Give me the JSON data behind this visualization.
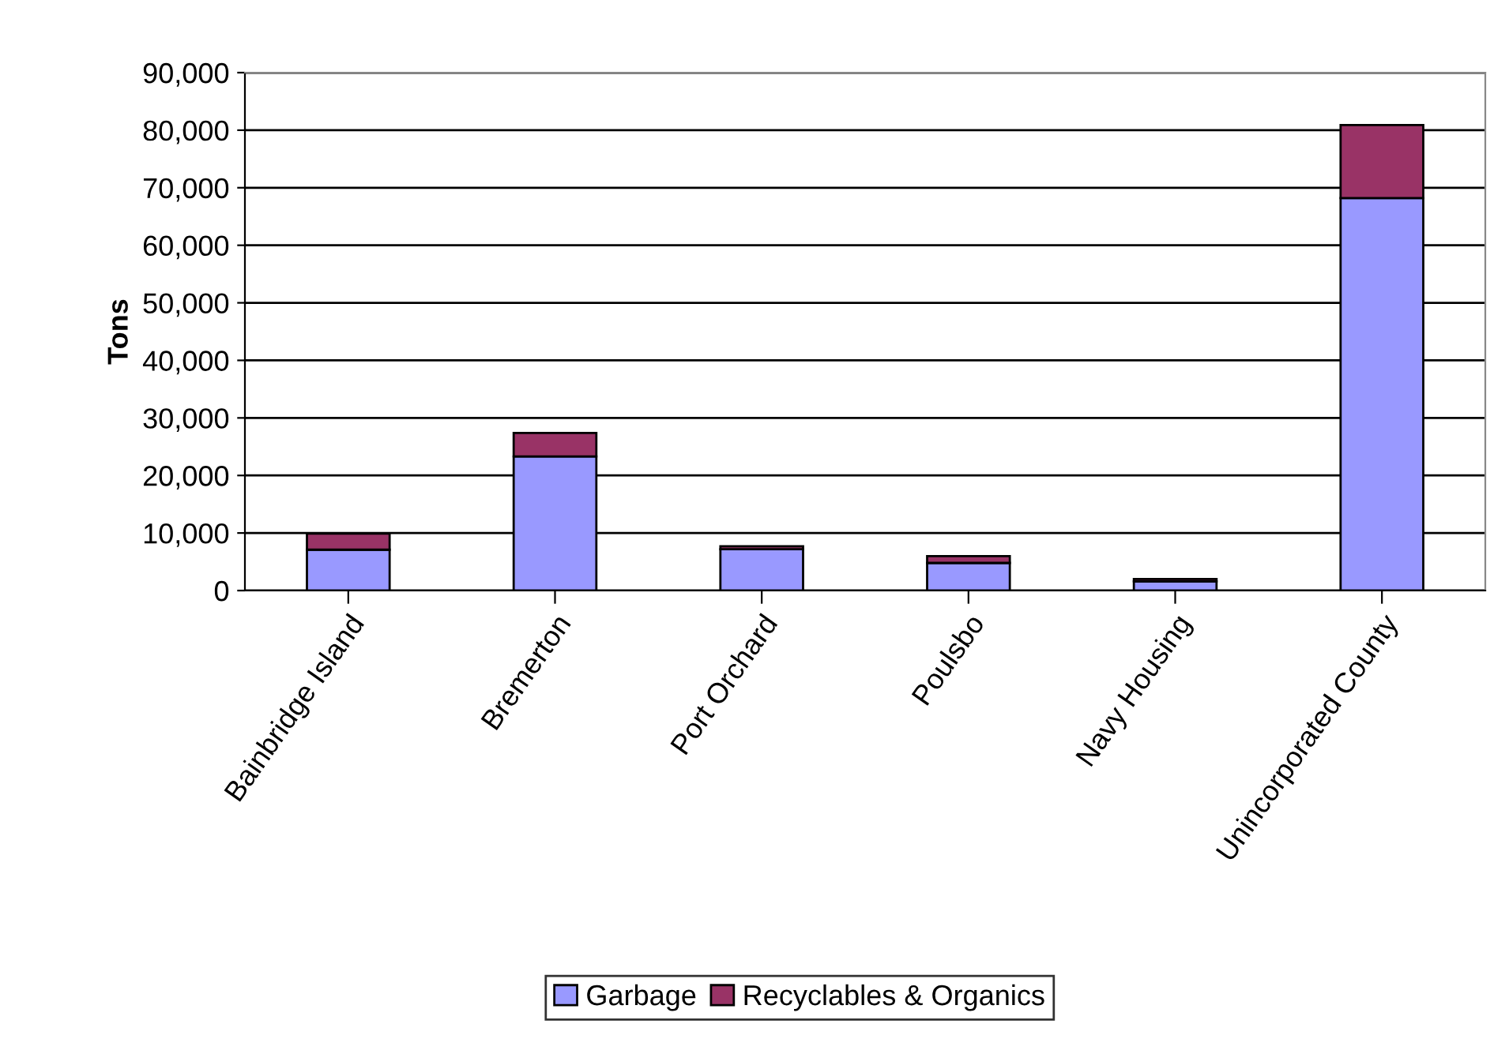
{
  "chart_data": {
    "type": "bar",
    "stacked": true,
    "ylabel": "Tons",
    "categories": [
      "Bainbridge Island",
      "Bremerton",
      "Port Orchard",
      "Poulsbo",
      "Navy Housing",
      "Unincorporated County"
    ],
    "series": [
      {
        "name": "Garbage",
        "color": "#9999ff",
        "values": [
          7100,
          23300,
          7200,
          4800,
          1600,
          68200
        ]
      },
      {
        "name": "Recyclables & Organics",
        "color": "#993366",
        "values": [
          2800,
          4100,
          500,
          1200,
          400,
          12700
        ]
      }
    ],
    "ylim": [
      0,
      90000
    ],
    "yticks": [
      {
        "value": 0,
        "label": "0"
      },
      {
        "value": 10000,
        "label": "10,000"
      },
      {
        "value": 20000,
        "label": "20,000"
      },
      {
        "value": 30000,
        "label": "30,000"
      },
      {
        "value": 40000,
        "label": "40,000"
      },
      {
        "value": 50000,
        "label": "50,000"
      },
      {
        "value": 60000,
        "label": "60,000"
      },
      {
        "value": 70000,
        "label": "70,000"
      },
      {
        "value": 80000,
        "label": "80,000"
      },
      {
        "value": 90000,
        "label": "90,000"
      }
    ],
    "grid": "y",
    "legend": "bottom"
  }
}
